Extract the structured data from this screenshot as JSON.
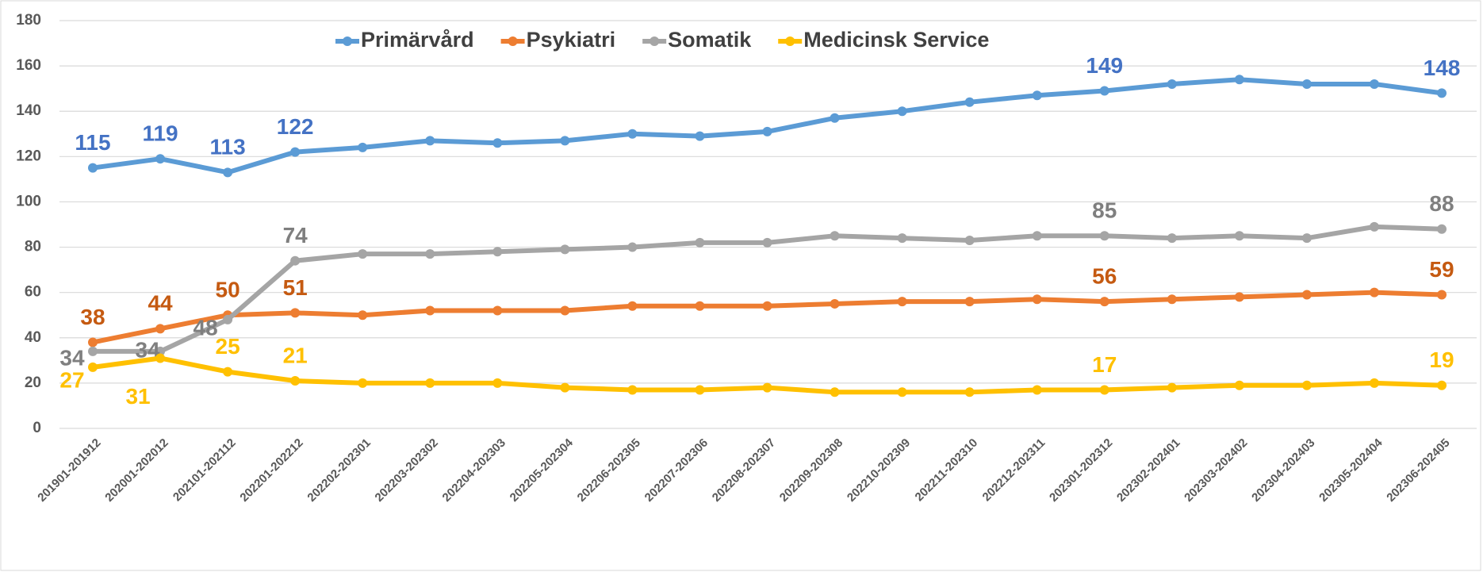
{
  "chart_data": {
    "type": "line",
    "categories": [
      "201901-201912",
      "202001-202012",
      "202101-202112",
      "202201-202212",
      "202202-202301",
      "202203-202302",
      "202204-202303",
      "202205-202304",
      "202206-202305",
      "202207-202306",
      "202208-202307",
      "202209-202308",
      "202210-202309",
      "202211-202310",
      "202212-202311",
      "202301-202312",
      "202302-202401",
      "202303-202402",
      "202304-202403",
      "202305-202404",
      "202306-202405"
    ],
    "series": [
      {
        "name": "Primärvård",
        "color": "#5b9bd5",
        "label_color": "#4472c4",
        "values": [
          115,
          119,
          113,
          122,
          124,
          127,
          126,
          127,
          130,
          129,
          131,
          137,
          140,
          144,
          147,
          149,
          152,
          154,
          152,
          152,
          148
        ]
      },
      {
        "name": "Psykiatri",
        "color": "#ed7d31",
        "label_color": "#c55a11",
        "values": [
          38,
          44,
          50,
          51,
          50,
          52,
          52,
          52,
          54,
          54,
          54,
          55,
          56,
          56,
          57,
          56,
          57,
          58,
          59,
          60,
          59
        ]
      },
      {
        "name": "Somatik",
        "color": "#a5a5a5",
        "label_color": "#7f7f7f",
        "values": [
          34,
          34,
          48,
          74,
          77,
          77,
          78,
          79,
          80,
          82,
          82,
          85,
          84,
          83,
          85,
          85,
          84,
          85,
          84,
          89,
          88
        ]
      },
      {
        "name": "Medicinsk Service",
        "color": "#ffc000",
        "label_color": "#ffc000",
        "values": [
          27,
          31,
          25,
          21,
          20,
          20,
          20,
          18,
          17,
          17,
          18,
          16,
          16,
          16,
          17,
          17,
          18,
          19,
          19,
          20,
          19
        ]
      }
    ],
    "data_label_indices": [
      0,
      1,
      2,
      3,
      15,
      20
    ],
    "ylim": [
      0,
      180
    ],
    "yticks": [
      0,
      20,
      40,
      60,
      80,
      100,
      120,
      140,
      160,
      180
    ],
    "grid": true,
    "legend": "top"
  }
}
